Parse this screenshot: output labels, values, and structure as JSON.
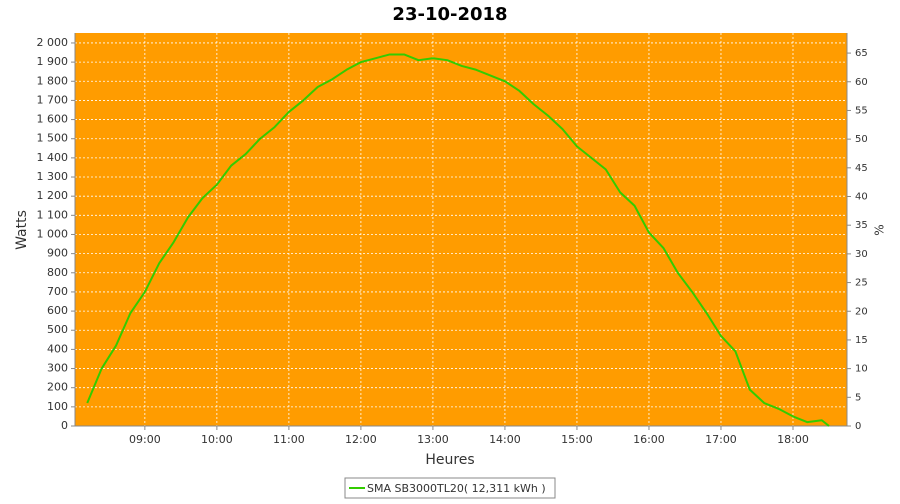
{
  "chart_data": {
    "type": "line",
    "title": "23-10-2018",
    "x_label": "Heures",
    "y_label": "Watts",
    "y2_label": "%",
    "x": [
      8.2,
      8.4,
      8.6,
      8.8,
      9.0,
      9.2,
      9.4,
      9.6,
      9.8,
      10.0,
      10.2,
      10.4,
      10.6,
      10.8,
      11.0,
      11.2,
      11.4,
      11.6,
      11.8,
      12.0,
      12.2,
      12.4,
      12.6,
      12.8,
      13.0,
      13.2,
      13.4,
      13.6,
      13.8,
      14.0,
      14.2,
      14.4,
      14.6,
      14.8,
      15.0,
      15.2,
      15.4,
      15.6,
      15.8,
      16.0,
      16.2,
      16.4,
      16.6,
      16.8,
      17.0,
      17.2,
      17.4,
      17.6,
      17.8,
      18.0,
      18.2,
      18.4,
      18.5
    ],
    "series": [
      {
        "name": "SMA SB3000TL20( 12,311 kWh )",
        "color": "#33cc00",
        "values": [
          120,
          300,
          420,
          590,
          700,
          850,
          960,
          1090,
          1190,
          1260,
          1360,
          1420,
          1500,
          1560,
          1640,
          1700,
          1770,
          1810,
          1860,
          1900,
          1920,
          1940,
          1940,
          1910,
          1920,
          1910,
          1880,
          1860,
          1830,
          1800,
          1750,
          1680,
          1620,
          1550,
          1460,
          1400,
          1340,
          1220,
          1150,
          1010,
          930,
          800,
          700,
          590,
          470,
          390,
          190,
          120,
          90,
          50,
          20,
          30,
          0
        ]
      }
    ],
    "xlim": [
      8.03,
      18.75
    ],
    "xticks": [
      {
        "value": 9,
        "label": "09:00"
      },
      {
        "value": 10,
        "label": "10:00"
      },
      {
        "value": 11,
        "label": "11:00"
      },
      {
        "value": 12,
        "label": "12:00"
      },
      {
        "value": 13,
        "label": "13:00"
      },
      {
        "value": 14,
        "label": "14:00"
      },
      {
        "value": 15,
        "label": "15:00"
      },
      {
        "value": 16,
        "label": "16:00"
      },
      {
        "value": 17,
        "label": "17:00"
      },
      {
        "value": 18,
        "label": "18:00"
      }
    ],
    "ylim": [
      0,
      2052
    ],
    "yticks": [
      0,
      100,
      200,
      300,
      400,
      500,
      600,
      700,
      800,
      900,
      {
        "value": 1000,
        "label": "1 000"
      },
      {
        "value": 1100,
        "label": "1 100"
      },
      {
        "value": 1200,
        "label": "1 200"
      },
      {
        "value": 1300,
        "label": "1 300"
      },
      {
        "value": 1400,
        "label": "1 400"
      },
      {
        "value": 1500,
        "label": "1 500"
      },
      {
        "value": 1600,
        "label": "1 600"
      },
      {
        "value": 1700,
        "label": "1 700"
      },
      {
        "value": 1800,
        "label": "1 800"
      },
      {
        "value": 1900,
        "label": "1 900"
      },
      {
        "value": 2000,
        "label": "2 000"
      }
    ],
    "y2lim": [
      0,
      68.5
    ],
    "y2ticks": [
      0,
      5,
      10,
      15,
      20,
      25,
      30,
      35,
      40,
      45,
      50,
      55,
      60,
      65
    ],
    "grid": true,
    "plot_background": "#ff9c00",
    "legend": "bottom"
  }
}
